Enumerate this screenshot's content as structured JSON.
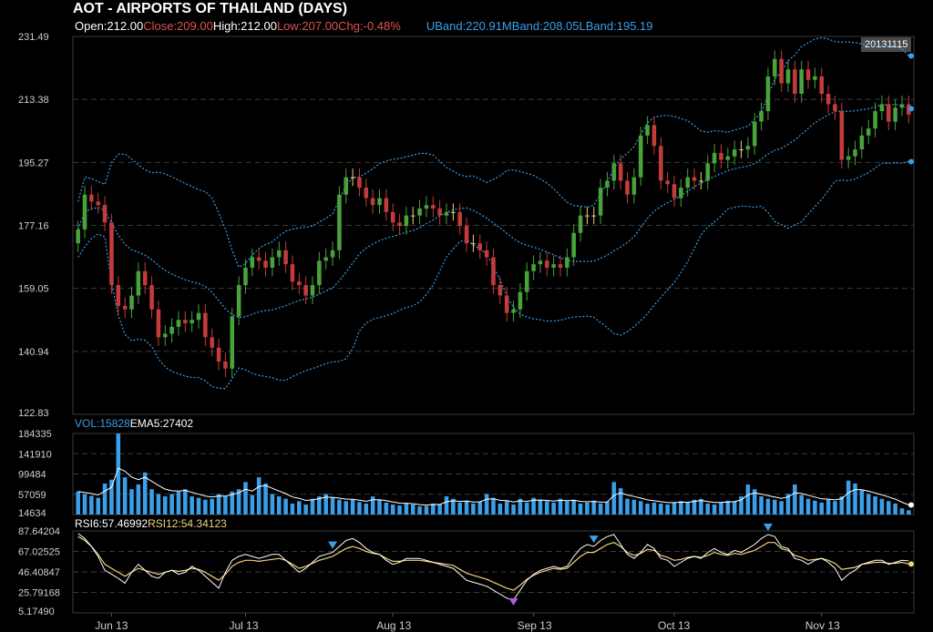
{
  "header": {
    "title": "AOT - AIRPORTS OF THAILAND (DAYS)",
    "open": "Open:212.00",
    "close": "Close:209.00",
    "high": "High:212.00",
    "low": "Low:207.00",
    "chg": "Chg:-0.48%",
    "uband": "UBand:220.91",
    "mband": "MBand:208.05",
    "lband": "LBand:195.19",
    "date_badge": "20131115"
  },
  "volume_panel": {
    "vol": "VOL:15828",
    "ema": "EMA5:27402"
  },
  "rsi_panel": {
    "rsi6": "RSI6:57.46992",
    "rsi12": "RSI12:54.34123"
  },
  "colors": {
    "up": "#47a33a",
    "down": "#c43b3b",
    "band": "#3b9ee8",
    "volume": "#3b9ee8",
    "rsi6": "#ffffff",
    "rsi12": "#f1d27a"
  },
  "chart_data": {
    "type": "candlestick",
    "price_axis": {
      "ticks": [
        "231.49",
        "213.38",
        "195.27",
        "177.16",
        "159.05",
        "140.94",
        "122.83"
      ],
      "range": [
        122.83,
        231.49
      ]
    },
    "volume_axis": {
      "ticks": [
        "184335",
        "141910",
        "99484",
        "57059",
        "14634"
      ],
      "range": [
        14634,
        184335
      ]
    },
    "rsi_axis": {
      "ticks": [
        "87.64204",
        "67.02525",
        "46.40847",
        "25.79168",
        "5.17490"
      ],
      "range": [
        5.1749,
        87.64204
      ]
    },
    "x_labels": [
      {
        "label": "Jun 13",
        "index": 5
      },
      {
        "label": "Jul 13",
        "index": 25
      },
      {
        "label": "Aug 13",
        "index": 47
      },
      {
        "label": "Sep 13",
        "index": 68
      },
      {
        "label": "Oct 13",
        "index": 89
      },
      {
        "label": "Nov 13",
        "index": 111
      }
    ],
    "close": [
      176,
      186,
      184,
      183,
      178,
      160,
      154,
      153,
      157,
      164,
      160,
      153,
      145,
      146,
      148,
      150,
      149,
      150,
      152,
      145,
      142,
      138,
      136,
      151,
      160,
      165,
      168,
      167,
      165,
      168,
      170,
      166,
      161,
      160,
      157,
      160,
      167,
      168,
      170,
      186,
      191,
      191,
      188,
      185,
      183,
      185,
      181,
      178,
      177,
      180,
      180,
      182,
      183,
      182,
      180,
      181,
      181,
      177,
      172,
      172,
      170,
      168,
      160,
      157,
      152,
      153,
      158,
      164,
      166,
      167,
      165,
      166,
      165,
      168,
      175,
      180,
      180,
      180,
      188,
      190,
      195,
      190,
      186,
      191,
      203,
      206,
      200,
      190,
      189,
      185,
      188,
      191,
      190,
      190,
      195,
      198,
      196,
      197,
      199,
      199,
      200,
      207,
      210,
      220,
      225,
      218,
      222,
      215,
      222,
      219,
      220,
      215,
      212,
      210,
      196,
      197,
      199,
      203,
      205,
      210,
      212,
      207,
      211,
      212,
      209
    ],
    "volume": [
      55000,
      50000,
      46000,
      42000,
      72000,
      80000,
      184335,
      85000,
      60000,
      70000,
      95000,
      60000,
      50000,
      45000,
      50000,
      55000,
      60000,
      45000,
      42000,
      38000,
      40000,
      50000,
      45000,
      55000,
      60000,
      75000,
      48000,
      85000,
      72000,
      50000,
      45000,
      40000,
      30000,
      35000,
      28000,
      40000,
      45000,
      50000,
      42000,
      38000,
      35000,
      38000,
      33000,
      30000,
      45000,
      38000,
      32000,
      28000,
      26000,
      30000,
      28000,
      24000,
      25000,
      30000,
      28000,
      45000,
      40000,
      32000,
      36000,
      30000,
      34000,
      50000,
      42000,
      30000,
      35000,
      28000,
      40000,
      32000,
      42000,
      38000,
      35000,
      32000,
      40000,
      35000,
      38000,
      30000,
      32000,
      36000,
      30000,
      34000,
      75000,
      62000,
      40000,
      38000,
      35000,
      30000,
      32000,
      30000,
      28000,
      32000,
      35000,
      32000,
      38000,
      40000,
      30000,
      28000,
      32000,
      36000,
      35000,
      45000,
      70000,
      60000,
      45000,
      40000,
      38000,
      35000,
      50000,
      70000,
      48000,
      40000,
      36000,
      32000,
      38000,
      35000,
      45000,
      78000,
      72000,
      58000,
      50000,
      45000,
      40000,
      35000,
      30000,
      20000,
      15828
    ],
    "rsi6": [
      85,
      80,
      72,
      62,
      48,
      44,
      40,
      35,
      46,
      54,
      48,
      42,
      40,
      46,
      48,
      44,
      46,
      52,
      48,
      42,
      36,
      30,
      46,
      58,
      62,
      64,
      62,
      60,
      62,
      64,
      64,
      58,
      52,
      46,
      50,
      56,
      62,
      64,
      66,
      72,
      78,
      80,
      76,
      70,
      66,
      64,
      58,
      54,
      56,
      60,
      60,
      60,
      58,
      56,
      54,
      52,
      50,
      44,
      38,
      36,
      34,
      32,
      28,
      24,
      20,
      18,
      28,
      38,
      44,
      48,
      50,
      52,
      50,
      52,
      62,
      70,
      74,
      72,
      78,
      82,
      84,
      74,
      64,
      60,
      66,
      74,
      70,
      60,
      58,
      52,
      56,
      60,
      62,
      60,
      66,
      70,
      66,
      64,
      68,
      66,
      70,
      74,
      80,
      84,
      82,
      72,
      70,
      60,
      58,
      54,
      58,
      60,
      56,
      50,
      38,
      44,
      48,
      54,
      56,
      58,
      58,
      54,
      56,
      58,
      57.47
    ],
    "rsi12": [
      82,
      78,
      72,
      64,
      54,
      50,
      46,
      42,
      46,
      50,
      48,
      46,
      44,
      46,
      48,
      47,
      48,
      50,
      49,
      46,
      42,
      38,
      44,
      52,
      56,
      58,
      58,
      57,
      58,
      59,
      60,
      58,
      54,
      50,
      52,
      55,
      58,
      60,
      62,
      66,
      70,
      72,
      70,
      67,
      65,
      64,
      60,
      57,
      57,
      58,
      58,
      58,
      57,
      56,
      55,
      54,
      53,
      49,
      45,
      43,
      41,
      39,
      36,
      33,
      30,
      28,
      33,
      39,
      43,
      46,
      48,
      50,
      49,
      50,
      56,
      62,
      66,
      66,
      70,
      74,
      76,
      72,
      66,
      63,
      65,
      69,
      68,
      63,
      61,
      58,
      59,
      61,
      62,
      61,
      63,
      66,
      64,
      63,
      65,
      64,
      66,
      68,
      72,
      76,
      76,
      70,
      68,
      63,
      61,
      58,
      59,
      60,
      58,
      55,
      49,
      50,
      51,
      54,
      55,
      56,
      56,
      55,
      55,
      56,
      54.34
    ]
  }
}
